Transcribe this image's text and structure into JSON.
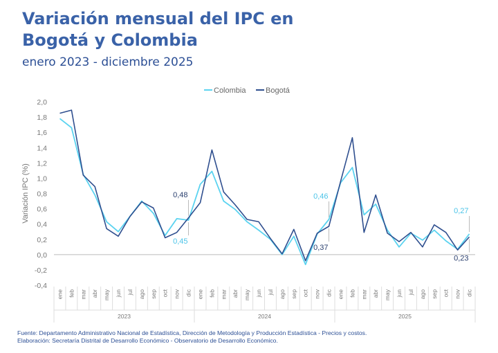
{
  "header": {
    "title": "Variación mensual del IPC en Bogotá y Colombia",
    "subtitle": "enero 2023 - diciembre 2025"
  },
  "footer": {
    "source": "Fuente: Departamento Administrativo Nacional de Estadística, Dirección de Metodología y Producción Estadística - Precios y costos.",
    "elaboration": "Elaboración: Secretaría Distrital de Desarrollo Económico - Observatorio de Desarrollo Económico."
  },
  "colors": {
    "colombia": "#5bd3f0",
    "bogota": "#2f4f8f",
    "annotation_colombia": "#4cc4e8",
    "annotation_bogota": "#2a3f6e",
    "axis": "#bbbbbb",
    "grid": "#dddddd"
  },
  "chart_data": {
    "type": "line",
    "title": "Variación mensual del IPC en Bogotá y Colombia",
    "subtitle": "enero 2023 - diciembre 2025",
    "ylabel": "Variación IPC (%)",
    "xlabel": "",
    "ylim": [
      -0.4,
      2.0
    ],
    "yticks": [
      "-0,4",
      "-0,2",
      "0,0",
      "0,2",
      "0,4",
      "0,6",
      "0,8",
      "1,0",
      "1,2",
      "1,4",
      "1,6",
      "1,8",
      "2,0"
    ],
    "grid": false,
    "legend_position": "top-center",
    "months": [
      "ene",
      "feb",
      "mar",
      "abr",
      "may",
      "jun",
      "jul",
      "ago",
      "sep",
      "oct",
      "nov",
      "dic"
    ],
    "years": [
      "2023",
      "2024",
      "2025"
    ],
    "series": [
      {
        "name": "Colombia",
        "values": [
          1.78,
          1.66,
          1.05,
          0.78,
          0.43,
          0.3,
          0.5,
          0.7,
          0.54,
          0.25,
          0.47,
          0.45,
          0.92,
          1.09,
          0.7,
          0.59,
          0.43,
          0.32,
          0.2,
          0.0,
          0.24,
          -0.13,
          0.27,
          0.46,
          0.94,
          1.14,
          0.52,
          0.66,
          0.32,
          0.1,
          0.28,
          0.19,
          0.32,
          0.18,
          0.07,
          0.27
        ]
      },
      {
        "name": "Bogotá",
        "values": [
          1.85,
          1.89,
          1.04,
          0.89,
          0.34,
          0.24,
          0.5,
          0.69,
          0.61,
          0.22,
          0.29,
          0.48,
          0.68,
          1.37,
          0.82,
          0.65,
          0.46,
          0.43,
          0.21,
          0.01,
          0.33,
          -0.08,
          0.28,
          0.37,
          0.96,
          1.53,
          0.29,
          0.78,
          0.28,
          0.17,
          0.29,
          0.1,
          0.39,
          0.29,
          0.06,
          0.23
        ]
      }
    ],
    "annotations": [
      {
        "series": "Bogotá",
        "index": 11,
        "label": "0,48",
        "placement": "above"
      },
      {
        "series": "Colombia",
        "index": 11,
        "label": "0,45",
        "placement": "below"
      },
      {
        "series": "Colombia",
        "index": 23,
        "label": "0,46",
        "placement": "above"
      },
      {
        "series": "Bogotá",
        "index": 23,
        "label": "0,37",
        "placement": "below"
      },
      {
        "series": "Colombia",
        "index": 35,
        "label": "0,27",
        "placement": "above"
      },
      {
        "series": "Bogotá",
        "index": 35,
        "label": "0,23",
        "placement": "below"
      }
    ]
  }
}
